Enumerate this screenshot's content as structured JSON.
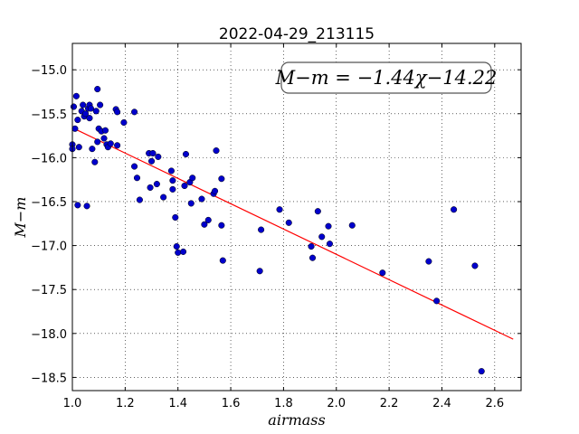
{
  "chart_data": {
    "type": "scatter",
    "title": "2022-04-29_213115",
    "xlabel": "airmass",
    "ylabel": "M−m",
    "xlim": [
      1.0,
      2.7
    ],
    "ylim": [
      -18.65,
      -14.7
    ],
    "y_inverted": true,
    "grid": true,
    "x_ticks": [
      "1.0",
      "1.2",
      "1.4",
      "1.6",
      "1.8",
      "2.0",
      "2.2",
      "2.4",
      "2.6"
    ],
    "y_ticks": [
      "−15.0",
      "−15.5",
      "−16.0",
      "−16.5",
      "−17.0",
      "−17.5",
      "−18.0",
      "−18.5"
    ],
    "annotation": "M−m = −1.44χ−14.22",
    "annotation_placement": "top-right",
    "point_color": "#0000cc",
    "line_color": "#ff0000",
    "fit": {
      "slope": -1.44,
      "intercept": -14.22,
      "x_range": [
        1.0,
        2.67
      ]
    },
    "points": [
      {
        "x": 1.0,
        "y": -15.85
      },
      {
        "x": 1.0,
        "y": -15.9
      },
      {
        "x": 1.005,
        "y": -15.42
      },
      {
        "x": 1.01,
        "y": -15.67
      },
      {
        "x": 1.015,
        "y": -15.3
      },
      {
        "x": 1.02,
        "y": -15.57
      },
      {
        "x": 1.02,
        "y": -16.54
      },
      {
        "x": 1.025,
        "y": -15.88
      },
      {
        "x": 1.035,
        "y": -15.47
      },
      {
        "x": 1.04,
        "y": -15.4
      },
      {
        "x": 1.045,
        "y": -15.53
      },
      {
        "x": 1.05,
        "y": -15.5
      },
      {
        "x": 1.055,
        "y": -16.55
      },
      {
        "x": 1.06,
        "y": -15.44
      },
      {
        "x": 1.065,
        "y": -15.4
      },
      {
        "x": 1.065,
        "y": -15.55
      },
      {
        "x": 1.07,
        "y": -15.44
      },
      {
        "x": 1.075,
        "y": -15.9
      },
      {
        "x": 1.085,
        "y": -16.05
      },
      {
        "x": 1.09,
        "y": -15.47
      },
      {
        "x": 1.095,
        "y": -15.22
      },
      {
        "x": 1.095,
        "y": -15.82
      },
      {
        "x": 1.1,
        "y": -15.67
      },
      {
        "x": 1.105,
        "y": -15.4
      },
      {
        "x": 1.11,
        "y": -15.7
      },
      {
        "x": 1.12,
        "y": -15.78
      },
      {
        "x": 1.125,
        "y": -15.69
      },
      {
        "x": 1.13,
        "y": -15.85
      },
      {
        "x": 1.135,
        "y": -15.88
      },
      {
        "x": 1.145,
        "y": -15.84
      },
      {
        "x": 1.165,
        "y": -15.45
      },
      {
        "x": 1.17,
        "y": -15.48
      },
      {
        "x": 1.17,
        "y": -15.86
      },
      {
        "x": 1.195,
        "y": -15.6
      },
      {
        "x": 1.235,
        "y": -15.48
      },
      {
        "x": 1.235,
        "y": -16.1
      },
      {
        "x": 1.245,
        "y": -16.23
      },
      {
        "x": 1.255,
        "y": -16.48
      },
      {
        "x": 1.29,
        "y": -15.95
      },
      {
        "x": 1.295,
        "y": -16.34
      },
      {
        "x": 1.3,
        "y": -16.04
      },
      {
        "x": 1.305,
        "y": -15.95
      },
      {
        "x": 1.32,
        "y": -16.3
      },
      {
        "x": 1.325,
        "y": -15.99
      },
      {
        "x": 1.345,
        "y": -16.45
      },
      {
        "x": 1.375,
        "y": -16.15
      },
      {
        "x": 1.38,
        "y": -16.26
      },
      {
        "x": 1.38,
        "y": -16.36
      },
      {
        "x": 1.39,
        "y": -16.68
      },
      {
        "x": 1.395,
        "y": -17.01
      },
      {
        "x": 1.4,
        "y": -17.08
      },
      {
        "x": 1.42,
        "y": -17.07
      },
      {
        "x": 1.425,
        "y": -16.32
      },
      {
        "x": 1.43,
        "y": -15.96
      },
      {
        "x": 1.445,
        "y": -16.28
      },
      {
        "x": 1.45,
        "y": -16.52
      },
      {
        "x": 1.455,
        "y": -16.23
      },
      {
        "x": 1.49,
        "y": -16.47
      },
      {
        "x": 1.5,
        "y": -16.76
      },
      {
        "x": 1.515,
        "y": -16.71
      },
      {
        "x": 1.535,
        "y": -16.41
      },
      {
        "x": 1.54,
        "y": -16.38
      },
      {
        "x": 1.545,
        "y": -15.92
      },
      {
        "x": 1.565,
        "y": -16.24
      },
      {
        "x": 1.565,
        "y": -16.77
      },
      {
        "x": 1.57,
        "y": -17.17
      },
      {
        "x": 1.71,
        "y": -17.29
      },
      {
        "x": 1.715,
        "y": -16.82
      },
      {
        "x": 1.785,
        "y": -16.59
      },
      {
        "x": 1.82,
        "y": -16.74
      },
      {
        "x": 1.905,
        "y": -17.01
      },
      {
        "x": 1.91,
        "y": -17.14
      },
      {
        "x": 1.93,
        "y": -16.61
      },
      {
        "x": 1.945,
        "y": -16.9
      },
      {
        "x": 1.97,
        "y": -16.78
      },
      {
        "x": 1.975,
        "y": -16.98
      },
      {
        "x": 2.06,
        "y": -16.77
      },
      {
        "x": 2.175,
        "y": -17.31
      },
      {
        "x": 2.35,
        "y": -17.18
      },
      {
        "x": 2.38,
        "y": -17.63
      },
      {
        "x": 2.445,
        "y": -16.59
      },
      {
        "x": 2.525,
        "y": -17.23
      },
      {
        "x": 2.55,
        "y": -18.43
      }
    ]
  }
}
